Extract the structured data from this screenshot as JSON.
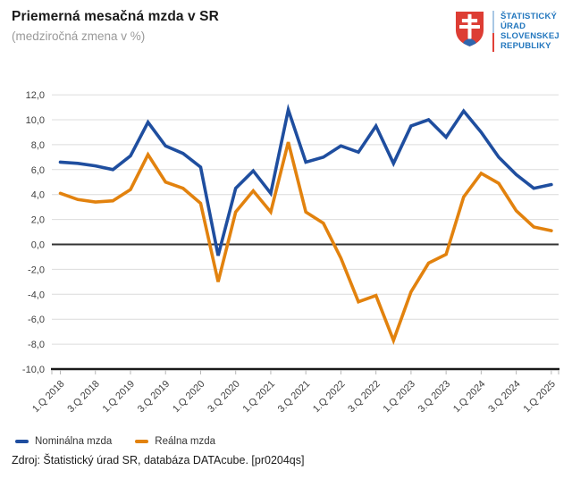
{
  "header": {
    "title": "Priemerná mesačná mzda v SR",
    "subtitle": "(medziročná zmena v %)"
  },
  "logo": {
    "emblem_icon": "slovak-coat-of-arms",
    "line1": "ŠTATISTICKÝ",
    "line2": "ÚRAD",
    "line3": "SLOVENSKEJ",
    "line4": "REPUBLIKY",
    "text_color": "#2377be",
    "shield_red": "#dd3d34",
    "hill_blue": "#2e66ae"
  },
  "legend": [
    {
      "label": "Nominálna mzda",
      "color": "#1f4e9f"
    },
    {
      "label": "Reálna mzda",
      "color": "#e2820e"
    }
  ],
  "source": "Zdroj: Štatistický úrad SR, databáza DATAcube. [pr0204qs]",
  "chart_data": {
    "type": "line",
    "title": "Priemerná mesačná mzda v SR (medziročná zmena v %)",
    "xlabel": "",
    "ylabel": "",
    "ylim": [
      -10,
      12
    ],
    "grid": true,
    "legend_position": "bottom-left",
    "categories": [
      "1.Q 2018",
      "2.Q 2018",
      "3.Q 2018",
      "4.Q 2018",
      "1.Q 2019",
      "2.Q 2019",
      "3.Q 2019",
      "4.Q 2019",
      "1.Q 2020",
      "2.Q 2020",
      "3.Q 2020",
      "4.Q 2020",
      "1.Q 2021",
      "2.Q 2021",
      "3.Q 2021",
      "4.Q 2021",
      "1.Q 2022",
      "2.Q 2022",
      "3.Q 2022",
      "4.Q 2022",
      "1.Q 2023",
      "2.Q 2023",
      "3.Q 2023",
      "4.Q 2023",
      "1.Q 2024",
      "2.Q 2024",
      "3.Q 2024",
      "4.Q 2024",
      "1.Q 2025"
    ],
    "x_tick_labels": [
      "1.Q 2018",
      "3.Q 2018",
      "1.Q 2019",
      "3.Q 2019",
      "1.Q 2020",
      "3.Q 2020",
      "1.Q 2021",
      "3.Q 2021",
      "1.Q 2022",
      "3.Q 2022",
      "1.Q 2023",
      "3.Q 2023",
      "1.Q 2024",
      "3.Q 2024",
      "1.Q 2025"
    ],
    "y_ticks": [
      {
        "value": 12,
        "label": "12,0"
      },
      {
        "value": 10,
        "label": "10,0"
      },
      {
        "value": 8,
        "label": "8,0"
      },
      {
        "value": 6,
        "label": "6,0"
      },
      {
        "value": 4,
        "label": "4,0"
      },
      {
        "value": 2,
        "label": "2,0"
      },
      {
        "value": 0,
        "label": "0,0"
      },
      {
        "value": -2,
        "label": "-2,0"
      },
      {
        "value": -4,
        "label": "-4,0"
      },
      {
        "value": -6,
        "label": "-6,0"
      },
      {
        "value": -8,
        "label": "-8,0"
      },
      {
        "value": -10,
        "label": "-10,0"
      }
    ],
    "series": [
      {
        "name": "Nominálna mzda",
        "color": "#1f4e9f",
        "values": [
          6.6,
          6.5,
          6.3,
          6.0,
          7.1,
          9.8,
          7.9,
          7.3,
          6.2,
          -0.9,
          4.5,
          5.9,
          4.1,
          10.8,
          6.6,
          7.0,
          7.9,
          7.4,
          9.5,
          6.5,
          9.5,
          10.0,
          8.6,
          10.7,
          9.0,
          7.0,
          5.6,
          4.5,
          4.8
        ]
      },
      {
        "name": "Reálna mzda",
        "color": "#e2820e",
        "values": [
          4.1,
          3.6,
          3.4,
          3.5,
          4.4,
          7.2,
          5.0,
          4.5,
          3.3,
          -3.0,
          2.6,
          4.3,
          2.6,
          8.2,
          2.6,
          1.7,
          -1.1,
          -4.6,
          -4.1,
          -7.7,
          -3.8,
          -1.5,
          -0.8,
          3.8,
          5.7,
          4.9,
          2.7,
          1.4,
          1.1
        ]
      }
    ]
  }
}
